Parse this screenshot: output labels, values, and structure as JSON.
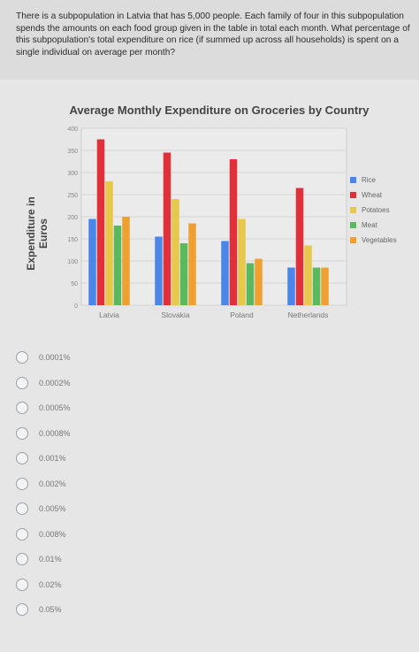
{
  "question": {
    "text": "There is a subpopulation in Latvia that has 5,000 people. Each family of four in this subpopulation spends the amounts on each food group given in the table in total each month. What percentage of this subpopulation's total expenditure on rice (if summed up across all households) is spent on a single individual on average per month?"
  },
  "chart_data": {
    "type": "bar",
    "title": "Average Monthly Expenditure on Groceries by Country",
    "ylabel": "Expenditure in Euros",
    "xlabel": "",
    "categories": [
      "Latvia",
      "Slovakia",
      "Poland",
      "Netherlands"
    ],
    "ylim": [
      0,
      400
    ],
    "yticks": [
      0,
      50,
      100,
      150,
      200,
      250,
      300,
      350,
      400
    ],
    "grid": true,
    "legend_position": "right",
    "series": [
      {
        "name": "Rice",
        "color": "#4a86e8",
        "values": [
          195,
          155,
          145,
          85
        ]
      },
      {
        "name": "Wheat",
        "color": "#e0303a",
        "values": [
          375,
          345,
          330,
          265
        ]
      },
      {
        "name": "Potatoes",
        "color": "#e8c84a",
        "values": [
          280,
          240,
          195,
          135
        ]
      },
      {
        "name": "Meat",
        "color": "#5cb85c",
        "values": [
          180,
          140,
          95,
          85
        ]
      },
      {
        "name": "Vegetables",
        "color": "#f0a030",
        "values": [
          200,
          185,
          105,
          85
        ]
      }
    ]
  },
  "options": [
    {
      "label": "0.0001%"
    },
    {
      "label": "0.0002%"
    },
    {
      "label": "0.0005%"
    },
    {
      "label": "0.0008%"
    },
    {
      "label": "0.001%"
    },
    {
      "label": "0.002%"
    },
    {
      "label": "0.005%"
    },
    {
      "label": "0.008%"
    },
    {
      "label": "0.01%"
    },
    {
      "label": "0.02%"
    },
    {
      "label": "0.05%"
    }
  ]
}
